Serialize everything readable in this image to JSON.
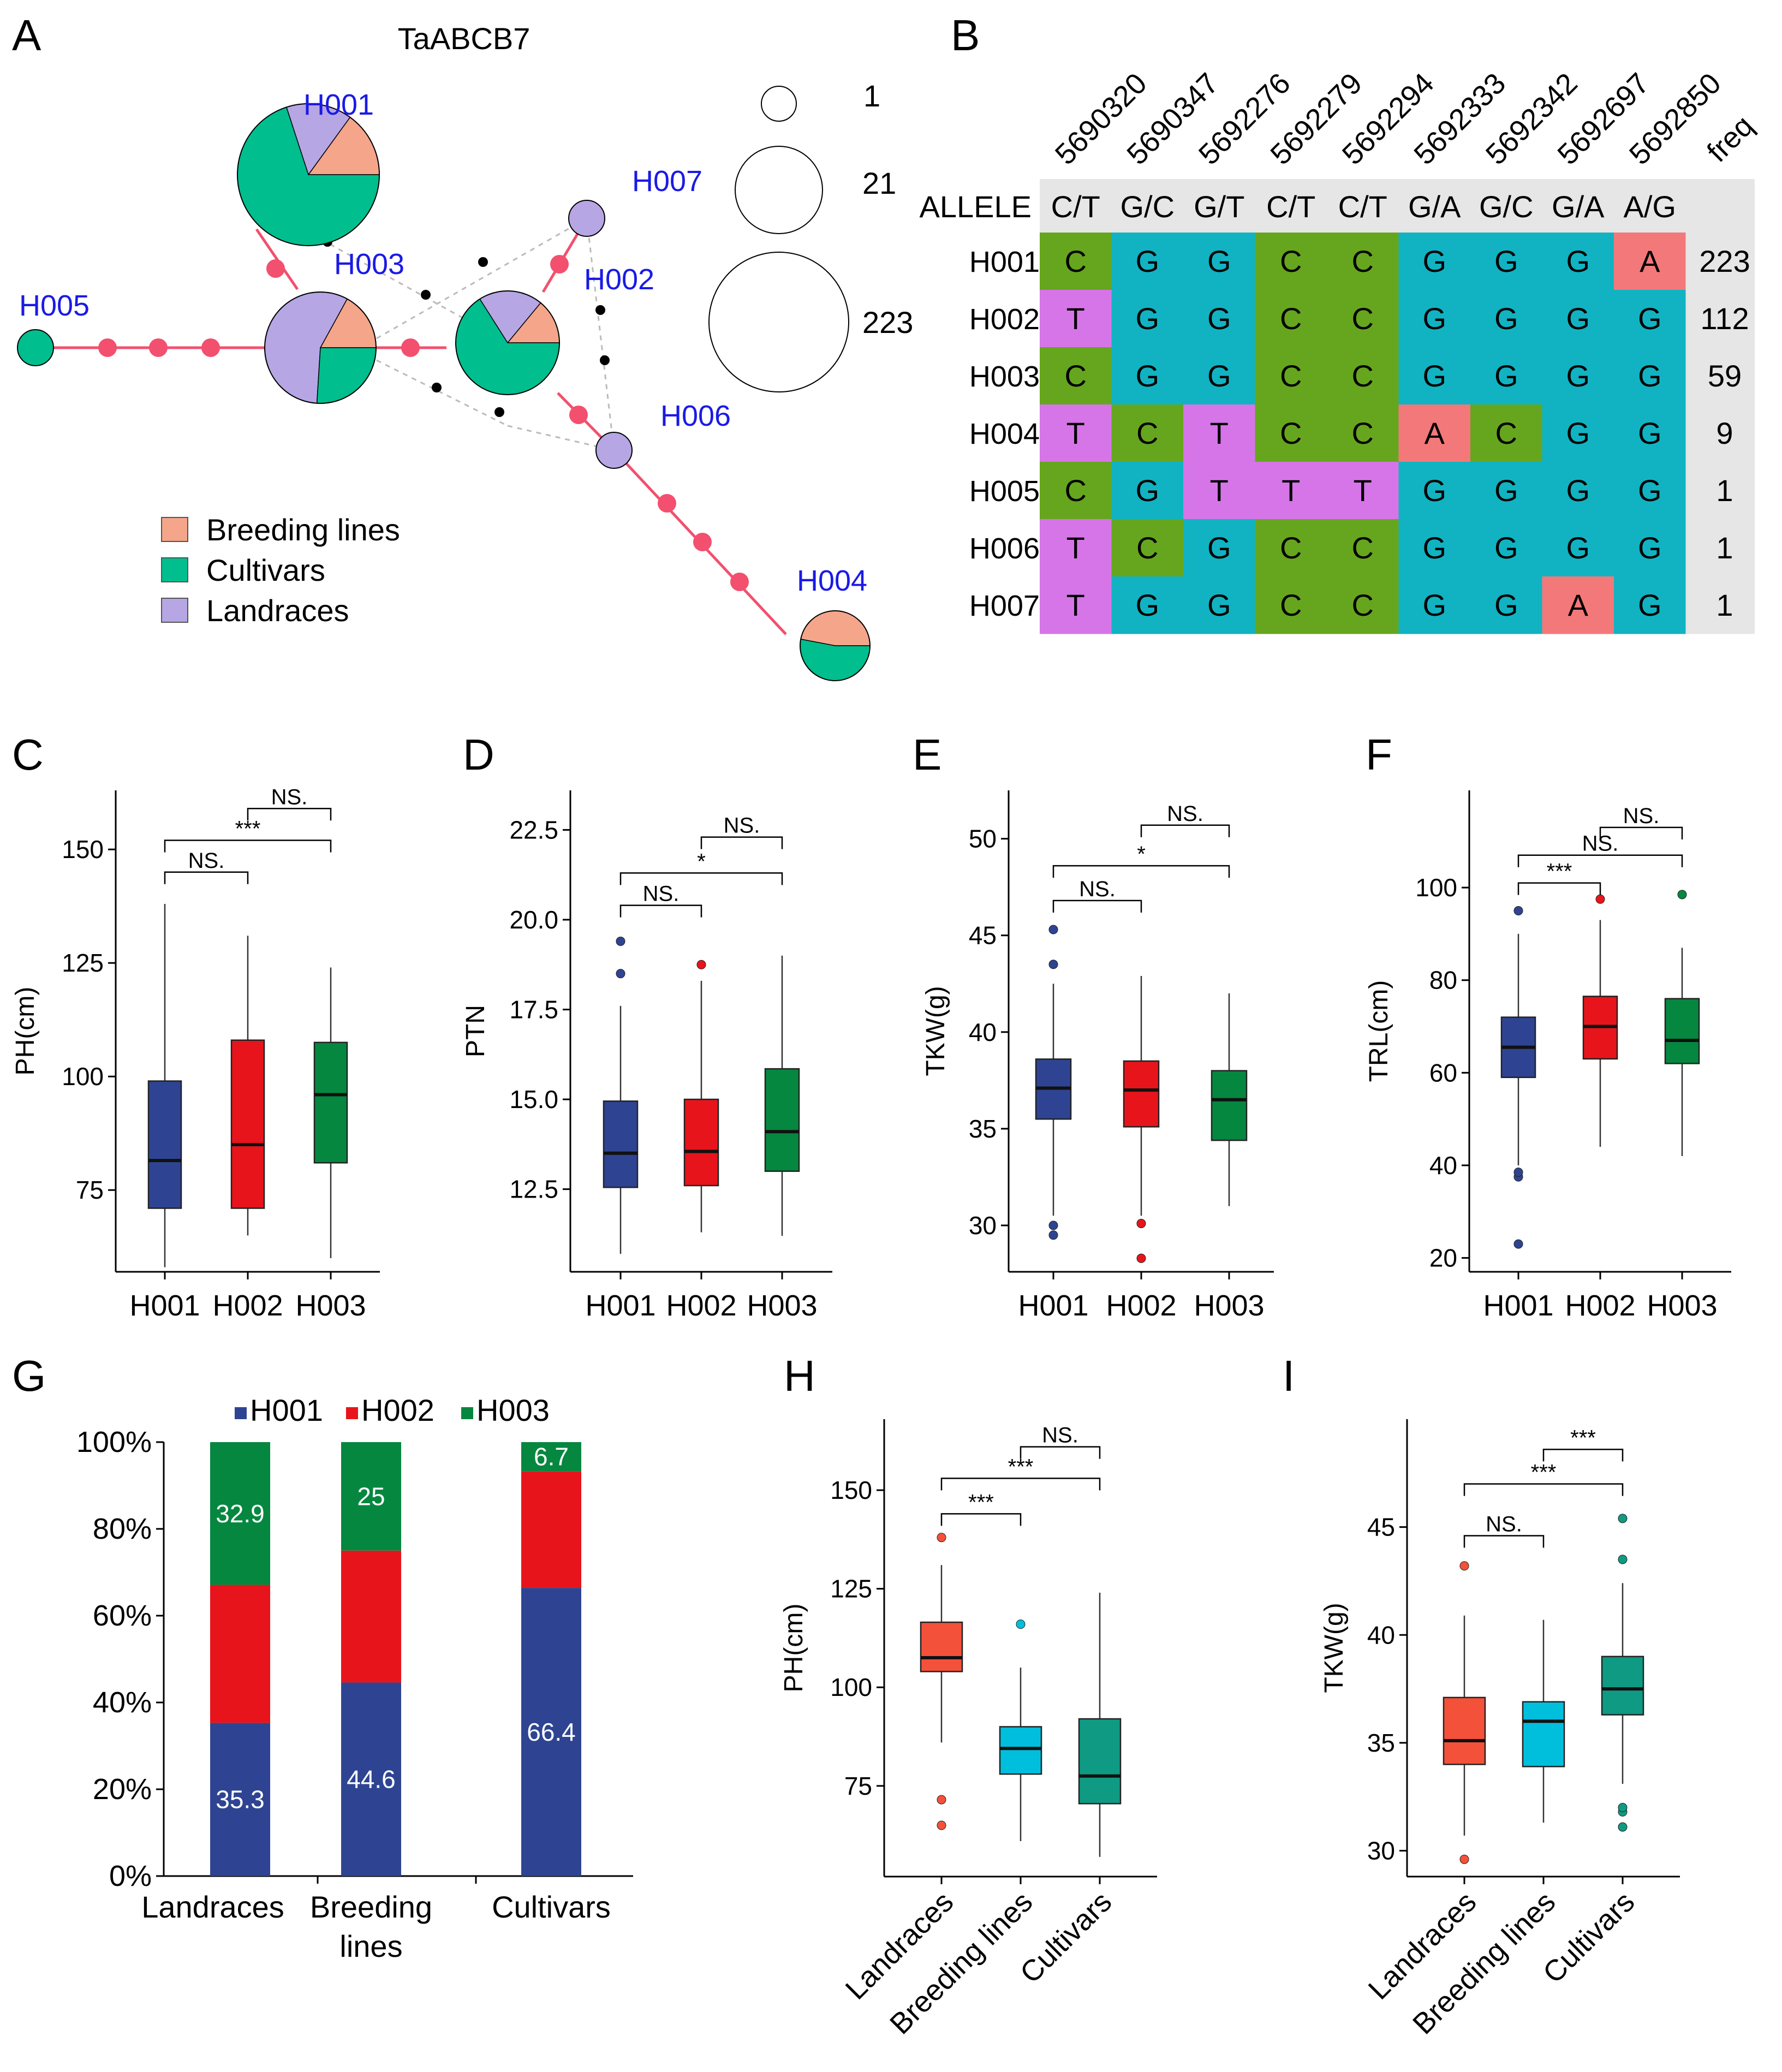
{
  "panel_labels": [
    "A",
    "B",
    "C",
    "D",
    "E",
    "F",
    "G",
    "H",
    "I"
  ],
  "colors": {
    "breeding": "#F4A58A",
    "cultivar": "#00BE8E",
    "landrace": "#B6A6E4",
    "edge": "#F2506E",
    "H001": "#2E4493",
    "H002": "#E8141B",
    "H003": "#05873F",
    "landrace_box": "#F4513A",
    "breeding_box": "#00BFDD",
    "cultivar_box": "#0E9A83",
    "green_cell": "#66A61E",
    "teal_cell": "#11B3C2",
    "magenta_cell": "#D675E8",
    "red_cell": "#F3787A",
    "header_cell": "#E6E6E6"
  },
  "network": {
    "title": "TaABCB7",
    "nodes": [
      {
        "id": "H001",
        "label": "H001",
        "count": 223,
        "breeding": 0.15,
        "cultivar": 0.7,
        "landrace": 0.15
      },
      {
        "id": "H002",
        "label": "H002",
        "count": 112,
        "breeding": 0.14,
        "cultivar": 0.66,
        "landrace": 0.2
      },
      {
        "id": "H003",
        "label": "H003",
        "count": 59,
        "breeding": 0.17,
        "cultivar": 0.26,
        "landrace": 0.57
      },
      {
        "id": "H004",
        "label": "H004",
        "count": 9,
        "breeding": 0.47,
        "cultivar": 0.53,
        "landrace": 0
      },
      {
        "id": "H005",
        "label": "H005",
        "count": 1,
        "breeding": 0,
        "cultivar": 1,
        "landrace": 0
      },
      {
        "id": "H006",
        "label": "H006",
        "count": 1,
        "breeding": 0,
        "cultivar": 0,
        "landrace": 1
      },
      {
        "id": "H007",
        "label": "H007",
        "count": 1,
        "breeding": 0,
        "cultivar": 0,
        "landrace": 1
      }
    ],
    "size_legend": [
      "1",
      "21",
      "223"
    ],
    "legend": [
      "Breeding lines",
      "Cultivars",
      "Landraces"
    ]
  },
  "allele_table": {
    "positions": [
      "5690320",
      "5690347",
      "5692276",
      "5692279",
      "5692294",
      "5692333",
      "5692342",
      "5692697",
      "5692850"
    ],
    "freq_label": "freq",
    "allele_label": "ALLELE",
    "alleles": [
      "C/T",
      "G/C",
      "G/T",
      "C/T",
      "C/T",
      "G/A",
      "G/C",
      "G/A",
      "A/G"
    ],
    "rows": [
      {
        "hap": "H001",
        "bases": [
          "C",
          "G",
          "G",
          "C",
          "C",
          "G",
          "G",
          "G",
          "A"
        ],
        "freq": "223"
      },
      {
        "hap": "H002",
        "bases": [
          "T",
          "G",
          "G",
          "C",
          "C",
          "G",
          "G",
          "G",
          "G"
        ],
        "freq": "112"
      },
      {
        "hap": "H003",
        "bases": [
          "C",
          "G",
          "G",
          "C",
          "C",
          "G",
          "G",
          "G",
          "G"
        ],
        "freq": "59"
      },
      {
        "hap": "H004",
        "bases": [
          "T",
          "C",
          "T",
          "C",
          "C",
          "A",
          "C",
          "G",
          "G"
        ],
        "freq": "9"
      },
      {
        "hap": "H005",
        "bases": [
          "C",
          "G",
          "T",
          "T",
          "T",
          "G",
          "G",
          "G",
          "G"
        ],
        "freq": "1"
      },
      {
        "hap": "H006",
        "bases": [
          "T",
          "C",
          "G",
          "C",
          "C",
          "G",
          "G",
          "G",
          "G"
        ],
        "freq": "1"
      },
      {
        "hap": "H007",
        "bases": [
          "T",
          "G",
          "G",
          "C",
          "C",
          "G",
          "G",
          "A",
          "G"
        ],
        "freq": "1"
      }
    ]
  },
  "chart_data": [
    {
      "panel": "C",
      "type": "box",
      "ylabel": "PH(cm)",
      "ylim": [
        57,
        163
      ],
      "yticks": [
        75,
        100,
        125,
        150
      ],
      "categories": [
        "H001",
        "H002",
        "H003"
      ],
      "boxes": [
        {
          "whisker_low": 58,
          "q1": 71,
          "median": 81.5,
          "q3": 99,
          "whisker_high": 138,
          "outliers": []
        },
        {
          "whisker_low": 65,
          "q1": 71,
          "median": 85,
          "q3": 108,
          "whisker_high": 131,
          "outliers": []
        },
        {
          "whisker_low": 60,
          "q1": 81,
          "median": 96,
          "q3": 107.5,
          "whisker_high": 124,
          "outliers": []
        }
      ],
      "significance": [
        {
          "from": 0,
          "to": 1,
          "label": "NS.",
          "y": 145
        },
        {
          "from": 0,
          "to": 2,
          "label": "***",
          "y": 152
        },
        {
          "from": 1,
          "to": 2,
          "label": "NS.",
          "y": 159
        }
      ]
    },
    {
      "panel": "D",
      "type": "box",
      "ylabel": "PTN",
      "ylim": [
        10.2,
        23.6
      ],
      "yticks": [
        12.5,
        15.0,
        17.5,
        20.0,
        22.5
      ],
      "categories": [
        "H001",
        "H002",
        "H003"
      ],
      "boxes": [
        {
          "whisker_low": 10.7,
          "q1": 12.55,
          "median": 13.5,
          "q3": 14.95,
          "whisker_high": 17.6,
          "outliers": [
            18.5,
            19.4
          ]
        },
        {
          "whisker_low": 11.3,
          "q1": 12.6,
          "median": 13.55,
          "q3": 15.0,
          "whisker_high": 18.3,
          "outliers": [
            18.75
          ]
        },
        {
          "whisker_low": 11.2,
          "q1": 13.0,
          "median": 14.1,
          "q3": 15.85,
          "whisker_high": 19.0,
          "outliers": []
        }
      ],
      "significance": [
        {
          "from": 0,
          "to": 1,
          "label": "NS.",
          "y": 20.4
        },
        {
          "from": 0,
          "to": 2,
          "label": "*",
          "y": 21.3
        },
        {
          "from": 1,
          "to": 2,
          "label": "NS.",
          "y": 22.3
        }
      ]
    },
    {
      "panel": "E",
      "type": "box",
      "ylabel": "TKW(g)",
      "ylim": [
        27.6,
        52.5
      ],
      "yticks": [
        30,
        35,
        40,
        45,
        50
      ],
      "categories": [
        "H001",
        "H002",
        "H003"
      ],
      "boxes": [
        {
          "whisker_low": 30.5,
          "q1": 35.5,
          "median": 37.1,
          "q3": 38.6,
          "whisker_high": 42.5,
          "outliers": [
            29.5,
            30.0,
            43.5,
            45.3
          ]
        },
        {
          "whisker_low": 30.5,
          "q1": 35.1,
          "median": 37.0,
          "q3": 38.5,
          "whisker_high": 42.9,
          "outliers": [
            28.3,
            30.1
          ]
        },
        {
          "whisker_low": 31.0,
          "q1": 34.4,
          "median": 36.5,
          "q3": 38.0,
          "whisker_high": 42.0,
          "outliers": []
        }
      ],
      "significance": [
        {
          "from": 0,
          "to": 1,
          "label": "NS.",
          "y": 46.8
        },
        {
          "from": 0,
          "to": 2,
          "label": "*",
          "y": 48.6
        },
        {
          "from": 1,
          "to": 2,
          "label": "NS.",
          "y": 50.7
        }
      ]
    },
    {
      "panel": "F",
      "type": "box",
      "ylabel": "TRL(cm)",
      "ylim": [
        17,
        121
      ],
      "yticks": [
        20,
        40,
        60,
        80,
        100
      ],
      "categories": [
        "H001",
        "H002",
        "H003"
      ],
      "boxes": [
        {
          "whisker_low": 40,
          "q1": 59,
          "median": 65.5,
          "q3": 72,
          "whisker_high": 90,
          "outliers": [
            23,
            37.5,
            38.5,
            95
          ]
        },
        {
          "whisker_low": 44,
          "q1": 63,
          "median": 70,
          "q3": 76.5,
          "whisker_high": 93,
          "outliers": [
            97.5
          ]
        },
        {
          "whisker_low": 42,
          "q1": 62,
          "median": 67,
          "q3": 76,
          "whisker_high": 87,
          "outliers": [
            98.5
          ]
        }
      ],
      "significance": [
        {
          "from": 0,
          "to": 1,
          "label": "***",
          "y": 101
        },
        {
          "from": 0,
          "to": 2,
          "label": "NS.",
          "y": 107
        },
        {
          "from": 1,
          "to": 2,
          "label": "NS.",
          "y": 113
        }
      ]
    },
    {
      "panel": "G",
      "type": "stacked_bar",
      "categories": [
        "Landraces",
        "Breeding lines",
        "Cultivars"
      ],
      "legend": [
        "H001",
        "H002",
        "H003"
      ],
      "yticks": [
        "0%",
        "20%",
        "40%",
        "60%",
        "80%",
        "100%"
      ],
      "series": [
        {
          "name": "H001",
          "values": [
            35.3,
            44.6,
            66.4
          ],
          "labels": [
            "35.3",
            "44.6",
            "66.4"
          ]
        },
        {
          "name": "H002",
          "values": [
            31.8,
            30.4,
            26.9
          ],
          "labels": [
            "",
            "",
            ""
          ]
        },
        {
          "name": "H003",
          "values": [
            32.9,
            25.0,
            6.7
          ],
          "labels": [
            "32.9",
            "25",
            "6.7"
          ]
        }
      ]
    },
    {
      "panel": "H",
      "type": "box",
      "ylabel": "PH(cm)",
      "ylim": [
        52,
        168
      ],
      "yticks": [
        75,
        100,
        125,
        150
      ],
      "categories": [
        "Landraces",
        "Breeding lines",
        "Cultivars"
      ],
      "boxes": [
        {
          "whisker_low": 86,
          "q1": 104,
          "median": 107.5,
          "q3": 116.5,
          "whisker_high": 131,
          "outliers": [
            65,
            71.5,
            138
          ]
        },
        {
          "whisker_low": 61,
          "q1": 78,
          "median": 84.5,
          "q3": 90,
          "whisker_high": 105,
          "outliers": [
            116
          ]
        },
        {
          "whisker_low": 57,
          "q1": 70.5,
          "median": 77.5,
          "q3": 92,
          "whisker_high": 124,
          "outliers": []
        }
      ],
      "significance": [
        {
          "from": 0,
          "to": 1,
          "label": "***",
          "y": 144
        },
        {
          "from": 0,
          "to": 2,
          "label": "***",
          "y": 153
        },
        {
          "from": 1,
          "to": 2,
          "label": "NS.",
          "y": 161
        }
      ]
    },
    {
      "panel": "I",
      "type": "box",
      "ylabel": "TKW(g)",
      "ylim": [
        28.8,
        50
      ],
      "yticks": [
        30,
        35,
        40,
        45
      ],
      "categories": [
        "Landraces",
        "Breeding lines",
        "Cultivars"
      ],
      "boxes": [
        {
          "whisker_low": 30.7,
          "q1": 34.0,
          "median": 35.1,
          "q3": 37.1,
          "whisker_high": 40.9,
          "outliers": [
            29.6,
            43.2
          ]
        },
        {
          "whisker_low": 31.3,
          "q1": 33.9,
          "median": 36.0,
          "q3": 36.9,
          "whisker_high": 40.7,
          "outliers": []
        },
        {
          "whisker_low": 33.1,
          "q1": 36.3,
          "median": 37.5,
          "q3": 39.0,
          "whisker_high": 42.4,
          "outliers": [
            31.1,
            31.8,
            32.0,
            43.5,
            45.4
          ]
        }
      ],
      "significance": [
        {
          "from": 0,
          "to": 1,
          "label": "NS.",
          "y": 44.6
        },
        {
          "from": 0,
          "to": 2,
          "label": "***",
          "y": 47.0
        },
        {
          "from": 1,
          "to": 2,
          "label": "***",
          "y": 48.6
        }
      ]
    }
  ]
}
